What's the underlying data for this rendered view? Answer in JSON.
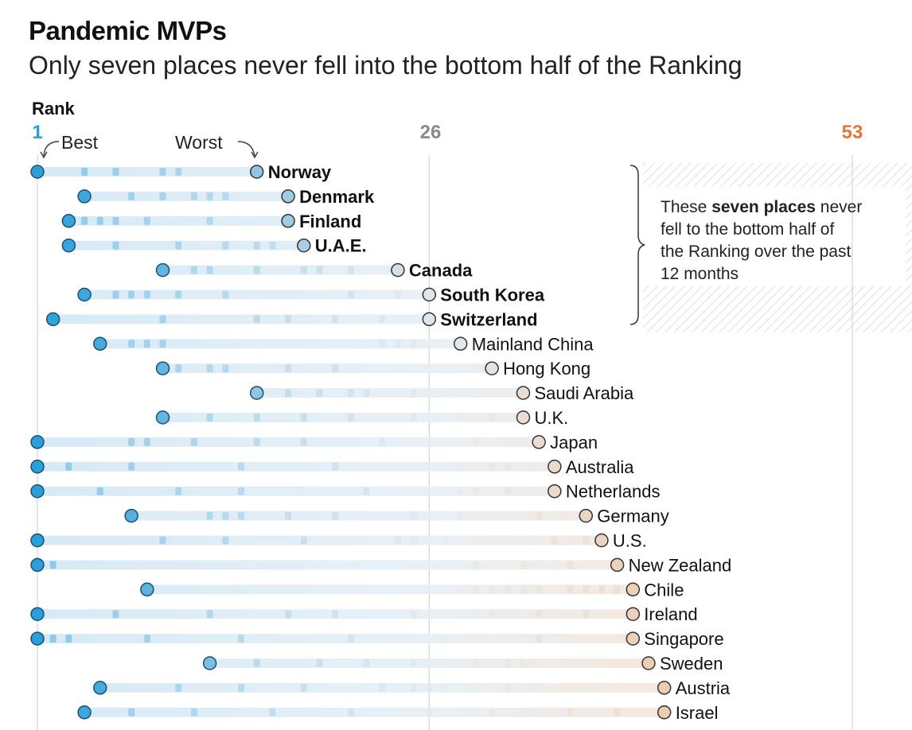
{
  "title": "Pandemic MVPs",
  "subtitle": "Only seven places never fell into the bottom half of the Ranking",
  "axis": {
    "label": "Rank",
    "best_label": "Best",
    "worst_label": "Worst"
  },
  "annotation": {
    "prefix": "These ",
    "bold": "seven places",
    "suffix": " never",
    "line2": "fell to the bottom half of",
    "line3": "the Ranking over the past",
    "line4": "12 months"
  },
  "colors": {
    "best": "#2a9fdc",
    "mid": "#e8e8e8",
    "worst": "#f0b57e",
    "rank_best_label": "#2a9fdc",
    "rank_mid_label": "#8a8a8a",
    "rank_worst_label": "#e2753a",
    "track": "#cfe6f5",
    "gridline": "#cccccc",
    "hatch": "#e6e6e6"
  },
  "chart_data": {
    "type": "dot-range",
    "xlim": [
      1,
      53
    ],
    "ticks": [
      1,
      26,
      53
    ],
    "series": [
      {
        "name": "Norway",
        "best": 1,
        "worst": 15,
        "highlight": true,
        "history": [
          4,
          6,
          9,
          10
        ]
      },
      {
        "name": "Denmark",
        "best": 4,
        "worst": 17,
        "highlight": true,
        "history": [
          7,
          9,
          11,
          12,
          13
        ]
      },
      {
        "name": "Finland",
        "best": 3,
        "worst": 17,
        "highlight": true,
        "history": [
          4,
          5,
          6,
          8,
          12
        ]
      },
      {
        "name": "U.A.E.",
        "best": 3,
        "worst": 18,
        "highlight": true,
        "history": [
          6,
          10,
          13,
          15,
          16
        ]
      },
      {
        "name": "Canada",
        "best": 9,
        "worst": 24,
        "highlight": true,
        "history": [
          11,
          12,
          15,
          18,
          19,
          21
        ]
      },
      {
        "name": "South Korea",
        "best": 4,
        "worst": 26,
        "highlight": true,
        "history": [
          6,
          7,
          8,
          10,
          13,
          21,
          24
        ]
      },
      {
        "name": "Switzerland",
        "best": 2,
        "worst": 26,
        "highlight": true,
        "history": [
          9,
          15,
          17,
          20,
          23
        ]
      },
      {
        "name": "Mainland China",
        "best": 5,
        "worst": 28,
        "highlight": false,
        "history": [
          7,
          8,
          9,
          23,
          24,
          25
        ]
      },
      {
        "name": "Hong Kong",
        "best": 9,
        "worst": 30,
        "highlight": false,
        "history": [
          10,
          12,
          13,
          17,
          20
        ]
      },
      {
        "name": "Saudi Arabia",
        "best": 15,
        "worst": 32,
        "highlight": false,
        "history": [
          17,
          19,
          21,
          22,
          25
        ]
      },
      {
        "name": "U.K.",
        "best": 9,
        "worst": 32,
        "highlight": false,
        "history": [
          12,
          15,
          18,
          21,
          25,
          28,
          30
        ]
      },
      {
        "name": "Japan",
        "best": 1,
        "worst": 33,
        "highlight": false,
        "history": [
          7,
          8,
          11,
          15,
          18,
          23,
          29
        ]
      },
      {
        "name": "Australia",
        "best": 1,
        "worst": 34,
        "highlight": false,
        "history": [
          3,
          7,
          14,
          20,
          28,
          30,
          31
        ]
      },
      {
        "name": "Netherlands",
        "best": 1,
        "worst": 34,
        "highlight": false,
        "history": [
          5,
          10,
          14,
          22,
          28,
          29,
          31
        ]
      },
      {
        "name": "Germany",
        "best": 7,
        "worst": 36,
        "highlight": false,
        "history": [
          12,
          13,
          14,
          17,
          20,
          25,
          28,
          33
        ]
      },
      {
        "name": "U.S.",
        "best": 1,
        "worst": 37,
        "highlight": false,
        "history": [
          9,
          13,
          18,
          24,
          25,
          27,
          34,
          36
        ]
      },
      {
        "name": "New Zealand",
        "best": 1,
        "worst": 38,
        "highlight": false,
        "history": [
          2,
          29,
          32,
          35
        ]
      },
      {
        "name": "Chile",
        "best": 8,
        "worst": 39,
        "highlight": false,
        "history": [
          28,
          29,
          30,
          31,
          32,
          33,
          35,
          36,
          37,
          38
        ]
      },
      {
        "name": "Ireland",
        "best": 1,
        "worst": 39,
        "highlight": false,
        "history": [
          6,
          12,
          17,
          20,
          25,
          30,
          33,
          36
        ]
      },
      {
        "name": "Singapore",
        "best": 1,
        "worst": 39,
        "highlight": false,
        "history": [
          2,
          3,
          8,
          14,
          21,
          27,
          33
        ]
      },
      {
        "name": "Sweden",
        "best": 12,
        "worst": 40,
        "highlight": false,
        "history": [
          15,
          19,
          22,
          25,
          29,
          31,
          32
        ]
      },
      {
        "name": "Austria",
        "best": 5,
        "worst": 41,
        "highlight": false,
        "history": [
          10,
          14,
          18,
          23,
          25,
          26,
          27,
          31
        ]
      },
      {
        "name": "Israel",
        "best": 4,
        "worst": 41,
        "highlight": false,
        "history": [
          7,
          11,
          16,
          21,
          26,
          30,
          35,
          38
        ]
      }
    ]
  }
}
